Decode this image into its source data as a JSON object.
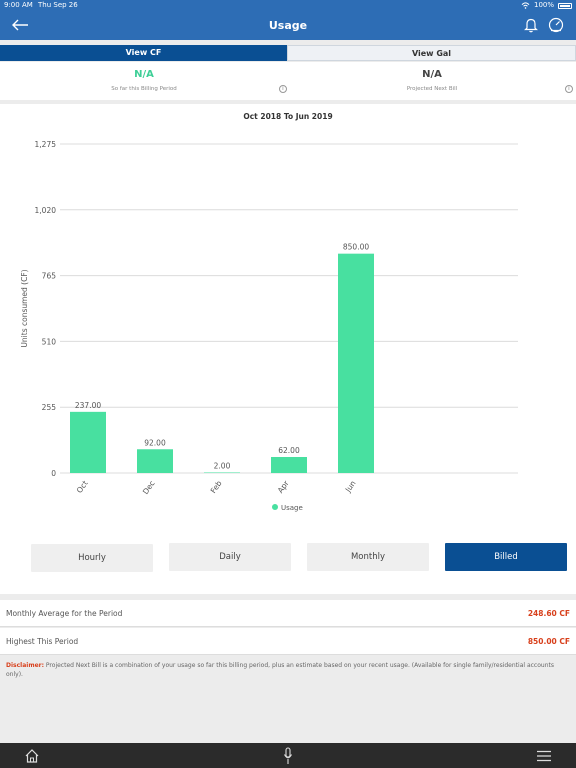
{
  "status_bar": {
    "time": "9:00 AM",
    "date": "Thu Sep 26",
    "battery": "100%"
  },
  "header": {
    "title": "Usage",
    "back_icon": "arrow-left-icon",
    "bell_icon": "bell-icon",
    "meter_icon": "gauge-icon"
  },
  "toggle": {
    "left": "View CF",
    "right": "View Gal"
  },
  "summary": [
    {
      "value": "N/A",
      "label": "So far this Billing Period",
      "color": "#3ecf97"
    },
    {
      "value": "N/A",
      "label": "Projected Next Bill",
      "color": "#444444"
    }
  ],
  "chart_data": {
    "type": "bar",
    "title": "Oct 2018 To Jun 2019",
    "ylabel": "Units consumed (CF)",
    "categories": [
      "Oct",
      "Dec",
      "Feb",
      "Apr",
      "Jun"
    ],
    "values": [
      237.0,
      92.0,
      2.0,
      62.0,
      850.0
    ],
    "value_labels": [
      "237.00",
      "92.00",
      "2.00",
      "62.00",
      "850.00"
    ],
    "yticks": [
      0,
      255,
      510,
      765,
      1020,
      1275
    ],
    "ytick_labels": [
      "0",
      "255",
      "510",
      "765",
      "1,020",
      "1,275"
    ],
    "ylim": [
      0,
      1275
    ],
    "legend": "Usage",
    "legend_position": "bottom-center",
    "grid": true,
    "color": "#48e0a0"
  },
  "period_buttons": [
    "Hourly",
    "Daily",
    "Monthly",
    "Billed"
  ],
  "active_period": "Billed",
  "stats": [
    {
      "label": "Monthly Average for the Period",
      "value": "248.60 CF"
    },
    {
      "label": "Highest This Period",
      "value": "850.00 CF"
    }
  ],
  "disclaimer": {
    "label": "Disclaimer:",
    "text": " Projected Next Bill is a combination of your usage so far this billing period, plus an estimate based on your recent usage. (Available for single family/residential accounts only)."
  },
  "tabbar": {
    "home_icon": "home-icon",
    "mic_icon": "microphone-icon",
    "menu_icon": "hamburger-menu-icon"
  }
}
